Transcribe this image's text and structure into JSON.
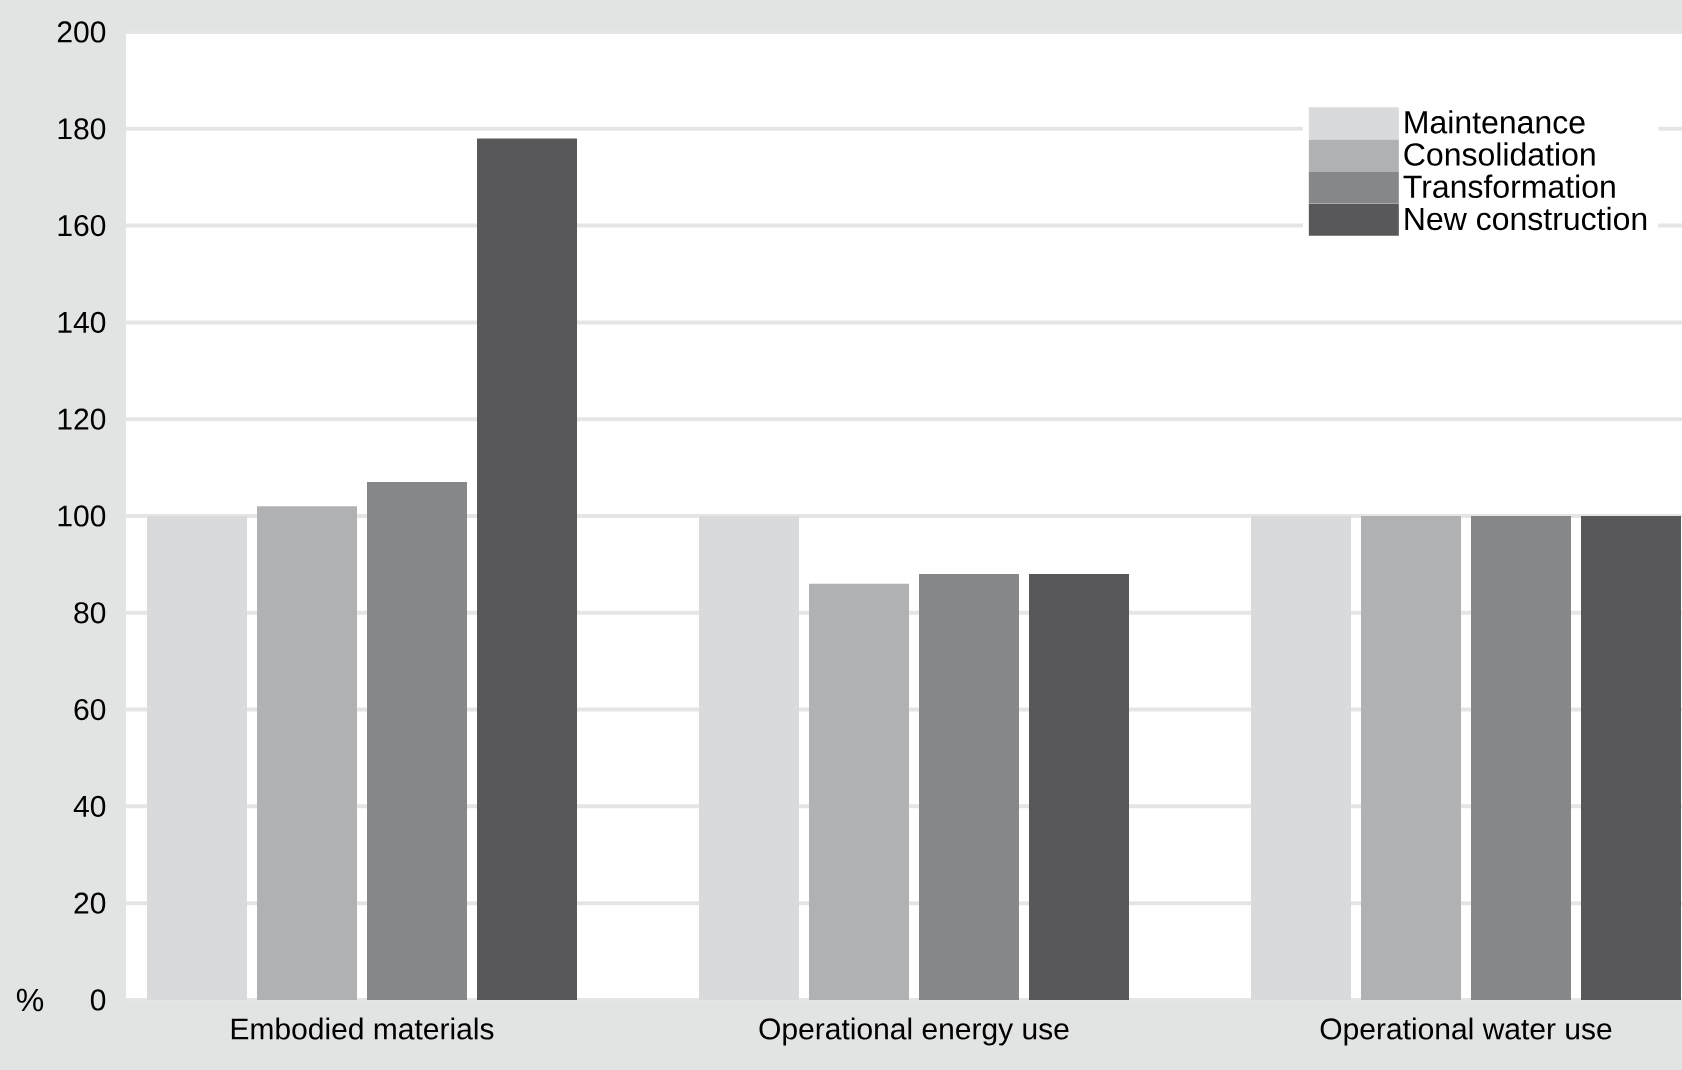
{
  "chart_data": {
    "type": "bar",
    "ylabel": "%",
    "categories": [
      "Embodied materials",
      "Operational energy use",
      "Operational water use"
    ],
    "series": [
      {
        "name": "Maintenance",
        "color": "#d9dadc",
        "values": [
          100,
          100,
          100
        ]
      },
      {
        "name": "Consolidation",
        "color": "#b0b1b3",
        "values": [
          102,
          86,
          100
        ]
      },
      {
        "name": "Transformation",
        "color": "#868789",
        "values": [
          107,
          88,
          100
        ]
      },
      {
        "name": "New construction",
        "color": "#58585a",
        "values": [
          178,
          88,
          100
        ]
      }
    ],
    "ylim": [
      0,
      200
    ],
    "yticks": [
      0,
      20,
      40,
      60,
      80,
      100,
      120,
      140,
      160,
      180,
      200
    ],
    "grid": "y",
    "legend": "top right"
  }
}
